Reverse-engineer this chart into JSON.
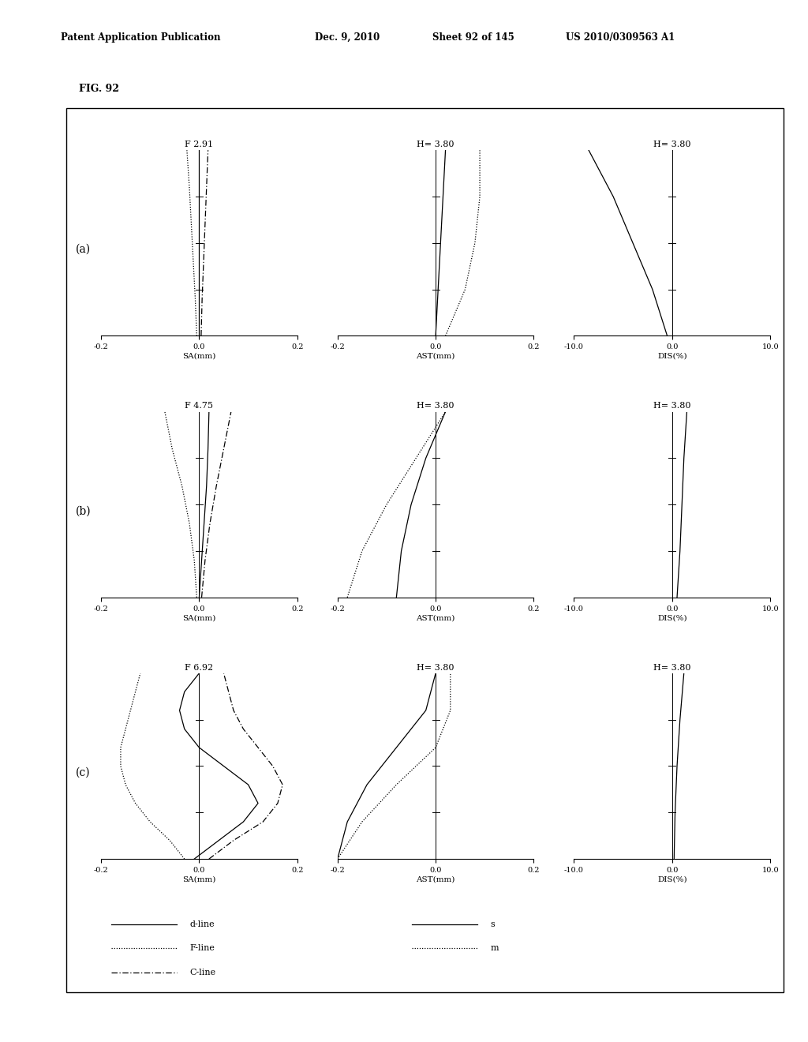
{
  "header_left": "Patent Application Publication",
  "header_mid": "Dec. 9, 2010",
  "header_sheet": "Sheet 92 of 145",
  "header_right": "US 2010/0309563 A1",
  "fig_label": "FIG. 92",
  "rows": [
    {
      "label": "(a)",
      "sa_title": "F 2.91",
      "ast_title": "H= 3.80",
      "dis_title": "H= 3.80",
      "sa": {
        "d_line": [
          [
            0.0,
            0.0
          ],
          [
            0.0,
            1.0
          ]
        ],
        "f_line": [
          [
            -0.005,
            0.0
          ],
          [
            -0.008,
            0.2
          ],
          [
            -0.012,
            0.4
          ],
          [
            -0.016,
            0.6
          ],
          [
            -0.02,
            0.8
          ],
          [
            -0.025,
            1.0
          ]
        ],
        "c_line": [
          [
            0.004,
            0.0
          ],
          [
            0.006,
            0.2
          ],
          [
            0.009,
            0.4
          ],
          [
            0.012,
            0.6
          ],
          [
            0.015,
            0.8
          ],
          [
            0.018,
            1.0
          ]
        ]
      },
      "ast": {
        "s_line": [
          [
            0.0,
            0.0
          ],
          [
            0.005,
            0.25
          ],
          [
            0.01,
            0.5
          ],
          [
            0.015,
            0.75
          ],
          [
            0.02,
            1.0
          ]
        ],
        "m_line": [
          [
            0.02,
            0.0
          ],
          [
            0.06,
            0.25
          ],
          [
            0.08,
            0.5
          ],
          [
            0.09,
            0.75
          ],
          [
            0.09,
            1.0
          ]
        ]
      },
      "dis": {
        "line": [
          [
            -0.5,
            0.0
          ],
          [
            -2.0,
            0.25
          ],
          [
            -4.0,
            0.5
          ],
          [
            -6.0,
            0.75
          ],
          [
            -8.5,
            1.0
          ]
        ]
      }
    },
    {
      "label": "(b)",
      "sa_title": "F 4.75",
      "ast_title": "H= 3.80",
      "dis_title": "H= 3.80",
      "sa": {
        "d_line": [
          [
            0.0,
            0.0
          ],
          [
            0.005,
            0.2
          ],
          [
            0.01,
            0.4
          ],
          [
            0.015,
            0.6
          ],
          [
            0.018,
            0.8
          ],
          [
            0.02,
            1.0
          ]
        ],
        "f_line": [
          [
            -0.005,
            0.0
          ],
          [
            -0.01,
            0.2
          ],
          [
            -0.02,
            0.4
          ],
          [
            -0.035,
            0.6
          ],
          [
            -0.055,
            0.8
          ],
          [
            -0.07,
            1.0
          ]
        ],
        "c_line": [
          [
            0.005,
            0.0
          ],
          [
            0.012,
            0.2
          ],
          [
            0.022,
            0.4
          ],
          [
            0.035,
            0.6
          ],
          [
            0.05,
            0.8
          ],
          [
            0.065,
            1.0
          ]
        ]
      },
      "ast": {
        "s_line": [
          [
            -0.08,
            0.0
          ],
          [
            -0.07,
            0.25
          ],
          [
            -0.05,
            0.5
          ],
          [
            -0.02,
            0.75
          ],
          [
            0.02,
            1.0
          ]
        ],
        "m_line": [
          [
            -0.18,
            0.0
          ],
          [
            -0.15,
            0.25
          ],
          [
            -0.1,
            0.5
          ],
          [
            -0.04,
            0.75
          ],
          [
            0.02,
            1.0
          ]
        ]
      },
      "dis": {
        "line": [
          [
            0.5,
            0.0
          ],
          [
            0.8,
            0.25
          ],
          [
            1.0,
            0.5
          ],
          [
            1.2,
            0.75
          ],
          [
            1.5,
            1.0
          ]
        ]
      }
    },
    {
      "label": "(c)",
      "sa_title": "F 6.92",
      "ast_title": "H= 3.80",
      "dis_title": "H= 3.80",
      "sa": {
        "d_line": [
          [
            -0.01,
            0.0
          ],
          [
            0.04,
            0.1
          ],
          [
            0.09,
            0.2
          ],
          [
            0.12,
            0.3
          ],
          [
            0.1,
            0.4
          ],
          [
            0.05,
            0.5
          ],
          [
            0.0,
            0.6
          ],
          [
            -0.03,
            0.7
          ],
          [
            -0.04,
            0.8
          ],
          [
            -0.03,
            0.9
          ],
          [
            0.0,
            1.0
          ]
        ],
        "f_line": [
          [
            -0.03,
            0.0
          ],
          [
            -0.06,
            0.1
          ],
          [
            -0.1,
            0.2
          ],
          [
            -0.13,
            0.3
          ],
          [
            -0.15,
            0.4
          ],
          [
            -0.16,
            0.5
          ],
          [
            -0.16,
            0.6
          ],
          [
            -0.15,
            0.7
          ],
          [
            -0.14,
            0.8
          ],
          [
            -0.13,
            0.9
          ],
          [
            -0.12,
            1.0
          ]
        ],
        "c_line": [
          [
            0.02,
            0.0
          ],
          [
            0.07,
            0.1
          ],
          [
            0.13,
            0.2
          ],
          [
            0.16,
            0.3
          ],
          [
            0.17,
            0.4
          ],
          [
            0.15,
            0.5
          ],
          [
            0.12,
            0.6
          ],
          [
            0.09,
            0.7
          ],
          [
            0.07,
            0.8
          ],
          [
            0.06,
            0.9
          ],
          [
            0.05,
            1.0
          ]
        ]
      },
      "ast": {
        "s_line": [
          [
            -0.2,
            0.0
          ],
          [
            -0.18,
            0.2
          ],
          [
            -0.14,
            0.4
          ],
          [
            -0.08,
            0.6
          ],
          [
            -0.02,
            0.8
          ],
          [
            0.0,
            1.0
          ]
        ],
        "m_line": [
          [
            -0.2,
            0.0
          ],
          [
            -0.15,
            0.2
          ],
          [
            -0.08,
            0.4
          ],
          [
            0.0,
            0.6
          ],
          [
            0.03,
            0.8
          ],
          [
            0.03,
            1.0
          ]
        ]
      },
      "dis": {
        "line": [
          [
            0.2,
            0.0
          ],
          [
            0.3,
            0.25
          ],
          [
            0.5,
            0.5
          ],
          [
            0.8,
            0.75
          ],
          [
            1.2,
            1.0
          ]
        ]
      }
    }
  ],
  "background_color": "#ffffff",
  "border_color": "#000000",
  "text_color": "#000000"
}
